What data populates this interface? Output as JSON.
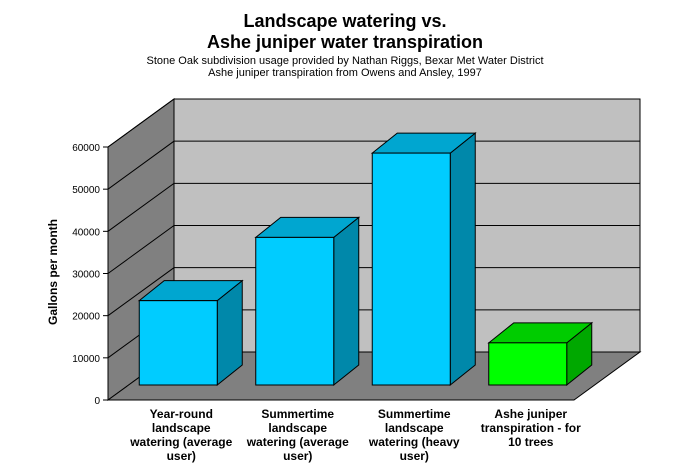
{
  "chart_data": {
    "type": "bar",
    "title": [
      "Landscape watering vs.",
      "Ashe juniper water transpiration"
    ],
    "subtitle": [
      "Stone Oak subdivision usage provided  by Nathan Riggs, Bexar Met Water District",
      "Ashe juniper transpiration from Owens and Ansley, 1997"
    ],
    "xlabel": "",
    "ylabel": "Gallons per month",
    "ylim": [
      0,
      60000
    ],
    "yticks": [
      "0",
      "10000",
      "20000",
      "30000",
      "40000",
      "50000",
      "60000"
    ],
    "categories": [
      [
        "Year-round",
        "landscape",
        "watering (average",
        "user)"
      ],
      [
        "Summertime",
        "landscape",
        "watering (average",
        "user)"
      ],
      [
        "Summertime",
        "landscape",
        "watering (heavy",
        "user)"
      ],
      [
        "Ashe juniper",
        "transpiration - for",
        "10 trees"
      ]
    ],
    "values": [
      20000,
      35000,
      55000,
      10000
    ],
    "bar_colors": [
      "#00ccff",
      "#00ccff",
      "#00ccff",
      "#00ff00"
    ],
    "bar_side_colors": [
      "#0088aa",
      "#0088aa",
      "#0088aa",
      "#00a800"
    ],
    "bar_top_colors": [
      "#00a6d0",
      "#00a6d0",
      "#00a6d0",
      "#00cc00"
    ],
    "colors": {
      "wall": "#c0c0c0",
      "side_wall": "#808080",
      "floor": "#808080"
    },
    "grid": true,
    "legend": "none"
  }
}
